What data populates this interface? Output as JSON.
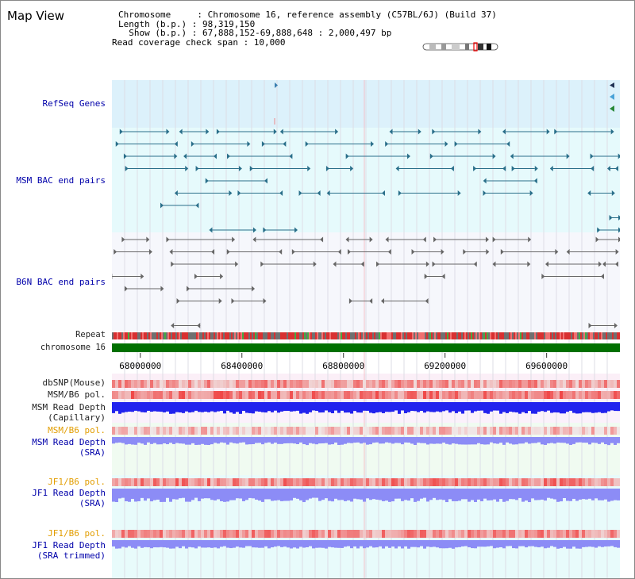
{
  "title": "Map View",
  "info": {
    "chromosome_label": "Chromosome     : Chromosome 16, reference assembly (C57BL/6J) (Build 37)",
    "length_label": "Length (b.p.) : 98,319,150",
    "show_label": "  Show (b.p.) : 67,888,152-69,888,648 : 2,000,497 bp",
    "coverage_label": "Read coverage check span : 10,000"
  },
  "tracks": {
    "refseq": "RefSeq Genes",
    "msm_bac": "MSM BAC end pairs",
    "b6n_bac": "B6N BAC end pairs",
    "repeat": "Repeat",
    "chromosome": "chromosome 16",
    "dbsnp": "dbSNP(Mouse)",
    "msm_b6_pol_1": "MSM/B6 pol.",
    "msm_depth_cap_1": "MSM Read Depth",
    "msm_depth_cap_2": "(Capillary)",
    "msm_b6_pol_2": "MSM/B6 pol.",
    "msm_depth_sra_1": "MSM Read Depth",
    "msm_depth_sra_2": "(SRA)",
    "jf1_b6_pol_1": "JF1/B6 pol.",
    "jf1_depth_sra_1": "JF1 Read Depth",
    "jf1_depth_sra_2": "(SRA)",
    "jf1_b6_pol_2": "JF1/B6 pol.",
    "jf1_depth_trim_1": "JF1 Read Depth",
    "jf1_depth_trim_2": "(SRA trimmed)"
  },
  "axis": {
    "ticks": [
      {
        "label": "68000000",
        "value": 68000000
      },
      {
        "label": "68400000",
        "value": 68400000
      },
      {
        "label": "68800000",
        "value": 68800000
      },
      {
        "label": "69200000",
        "value": 69200000
      },
      {
        "label": "69600000",
        "value": 69600000
      }
    ],
    "start": 67888152,
    "end": 69888648
  },
  "colors": {
    "refseq_bg": "#dcf1fb",
    "msm_bg": "#e6fafc",
    "b6n_bg": "#f6f7fc",
    "msm_line": "#2a6f8a",
    "b6n_line": "#666666",
    "chromosome": "#007000",
    "depth_cap": "#2222ee",
    "depth_sra": "#8c8cf6",
    "pol_red": "#ee2222",
    "label_blue": "#0000aa",
    "label_orange": "#e29d00"
  }
}
